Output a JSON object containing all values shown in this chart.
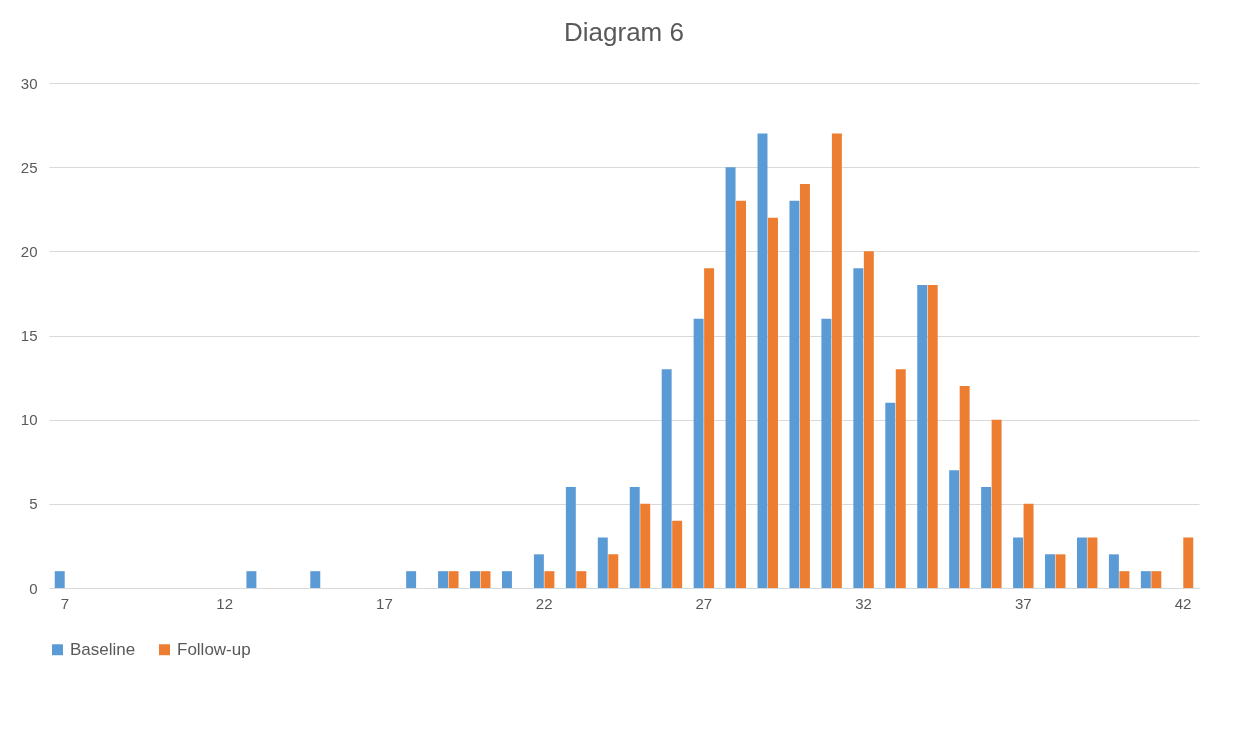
{
  "chart_data": {
    "type": "bar",
    "title": "Diagram 6",
    "categories": [
      "7",
      null,
      null,
      null,
      null,
      "12",
      null,
      null,
      null,
      null,
      "17",
      null,
      null,
      null,
      null,
      "22",
      null,
      null,
      null,
      null,
      "27",
      null,
      null,
      null,
      null,
      "32",
      null,
      null,
      null,
      null,
      "37",
      null,
      null,
      null,
      null,
      "42"
    ],
    "series": [
      {
        "name": "Baseline",
        "color": "#5b9bd5",
        "values": [
          1,
          null,
          null,
          null,
          null,
          null,
          1,
          null,
          1,
          null,
          null,
          1,
          1,
          1,
          1,
          2,
          6,
          3,
          6,
          13,
          16,
          25,
          27,
          23,
          16,
          19,
          11,
          18,
          7,
          6,
          3,
          2,
          3,
          2,
          1,
          null
        ]
      },
      {
        "name": "Follow-up",
        "color": "#ed7d31",
        "values": [
          null,
          null,
          null,
          null,
          null,
          null,
          null,
          null,
          null,
          null,
          null,
          null,
          1,
          1,
          null,
          1,
          1,
          2,
          5,
          4,
          19,
          23,
          22,
          24,
          27,
          20,
          13,
          18,
          12,
          10,
          5,
          2,
          3,
          1,
          1,
          3
        ]
      }
    ],
    "ylim": [
      0,
      30
    ],
    "yticks": [
      0,
      5,
      10,
      15,
      20,
      25,
      30
    ],
    "grid": "y",
    "legend": "bottom"
  }
}
